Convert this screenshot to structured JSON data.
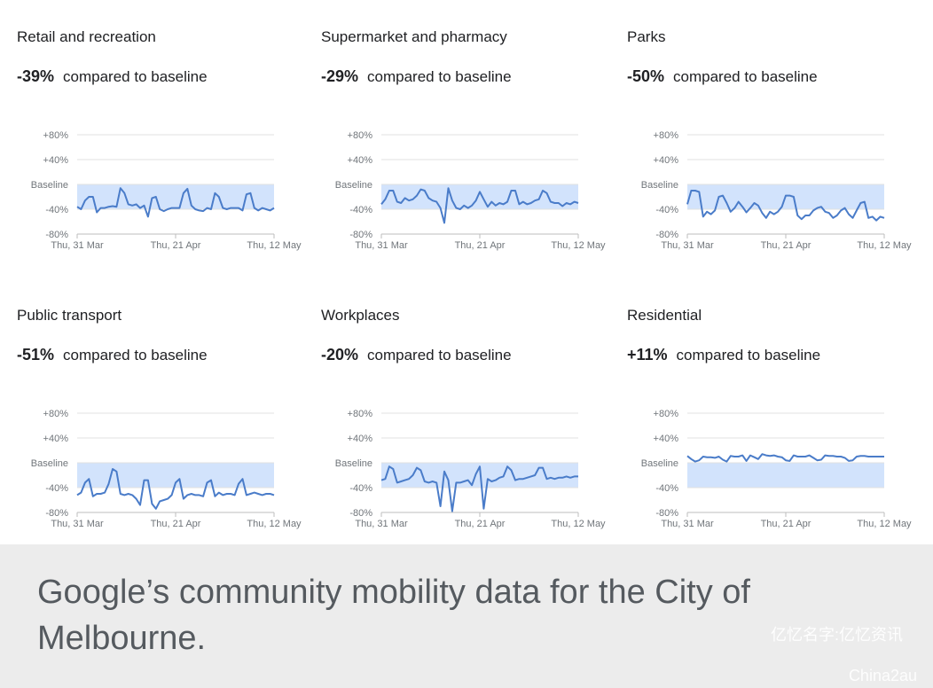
{
  "chart_data": [
    {
      "type": "line",
      "title": "Retail and recreation",
      "summary_value": "-39%",
      "summary_text": "compared to baseline",
      "yticks": [
        "+80%",
        "+40%",
        "Baseline",
        "-40%",
        "-80%"
      ],
      "ylim": [
        -80,
        80
      ],
      "xticks": [
        "Thu, 31 Mar",
        "Thu, 21 Apr",
        "Thu, 12 May"
      ],
      "values": [
        -36,
        -40,
        -26,
        -20,
        -20,
        -45,
        -38,
        -38,
        -36,
        -35,
        -36,
        -6,
        -14,
        -32,
        -34,
        -32,
        -38,
        -34,
        -52,
        -22,
        -20,
        -40,
        -43,
        -40,
        -38,
        -38,
        -38,
        -14,
        -7,
        -34,
        -40,
        -42,
        -43,
        -38,
        -40,
        -14,
        -20,
        -38,
        -40,
        -38,
        -38,
        -38,
        -42,
        -16,
        -14,
        -38,
        -42,
        -38,
        -40,
        -42,
        -38
      ]
    },
    {
      "type": "line",
      "title": "Supermarket and pharmacy",
      "summary_value": "-29%",
      "summary_text": "compared to baseline",
      "yticks": [
        "+80%",
        "+40%",
        "Baseline",
        "-40%",
        "-80%"
      ],
      "ylim": [
        -80,
        80
      ],
      "xticks": [
        "Thu, 31 Mar",
        "Thu, 21 Apr",
        "Thu, 12 May"
      ],
      "values": [
        -32,
        -24,
        -10,
        -10,
        -28,
        -30,
        -22,
        -26,
        -24,
        -18,
        -8,
        -10,
        -22,
        -26,
        -28,
        -38,
        -62,
        -6,
        -26,
        -38,
        -40,
        -34,
        -38,
        -34,
        -26,
        -12,
        -24,
        -36,
        -28,
        -34,
        -30,
        -32,
        -28,
        -10,
        -10,
        -32,
        -28,
        -32,
        -30,
        -26,
        -24,
        -10,
        -14,
        -28,
        -30,
        -30,
        -35,
        -30,
        -32,
        -28,
        -30
      ]
    },
    {
      "type": "line",
      "title": "Parks",
      "summary_value": "-50%",
      "summary_text": "compared to baseline",
      "yticks": [
        "+80%",
        "+40%",
        "Baseline",
        "-40%",
        "-80%"
      ],
      "ylim": [
        -80,
        80
      ],
      "xticks": [
        "Thu, 31 Mar",
        "Thu, 21 Apr",
        "Thu, 12 May"
      ],
      "values": [
        -32,
        -10,
        -10,
        -12,
        -52,
        -44,
        -48,
        -42,
        -20,
        -18,
        -30,
        -44,
        -38,
        -28,
        -36,
        -45,
        -38,
        -30,
        -34,
        -46,
        -54,
        -44,
        -48,
        -44,
        -36,
        -18,
        -18,
        -20,
        -50,
        -56,
        -50,
        -50,
        -42,
        -38,
        -36,
        -44,
        -46,
        -54,
        -50,
        -42,
        -38,
        -48,
        -54,
        -42,
        -30,
        -28,
        -54,
        -52,
        -58,
        -52,
        -54
      ]
    },
    {
      "type": "line",
      "title": "Public transport",
      "summary_value": "-51%",
      "summary_text": "compared to baseline",
      "yticks": [
        "+80%",
        "+40%",
        "Baseline",
        "-40%",
        "-80%"
      ],
      "ylim": [
        -80,
        80
      ],
      "xticks": [
        "Thu, 31 Mar",
        "Thu, 21 Apr",
        "Thu, 12 May"
      ],
      "values": [
        -52,
        -48,
        -32,
        -26,
        -54,
        -50,
        -50,
        -48,
        -34,
        -10,
        -14,
        -50,
        -52,
        -50,
        -52,
        -58,
        -68,
        -28,
        -28,
        -66,
        -74,
        -62,
        -60,
        -58,
        -52,
        -32,
        -26,
        -58,
        -52,
        -50,
        -52,
        -52,
        -54,
        -32,
        -28,
        -54,
        -48,
        -52,
        -50,
        -50,
        -52,
        -34,
        -26,
        -52,
        -50,
        -48,
        -50,
        -52,
        -50,
        -50,
        -52
      ]
    },
    {
      "type": "line",
      "title": "Workplaces",
      "summary_value": "-20%",
      "summary_text": "compared to baseline",
      "yticks": [
        "+80%",
        "+40%",
        "Baseline",
        "-40%",
        "-80%"
      ],
      "ylim": [
        -80,
        80
      ],
      "xticks": [
        "Thu, 31 Mar",
        "Thu, 21 Apr",
        "Thu, 12 May"
      ],
      "values": [
        -28,
        -26,
        -6,
        -10,
        -32,
        -30,
        -28,
        -26,
        -20,
        -8,
        -12,
        -30,
        -32,
        -30,
        -32,
        -70,
        -14,
        -28,
        -78,
        -32,
        -32,
        -30,
        -28,
        -36,
        -18,
        -6,
        -74,
        -26,
        -30,
        -28,
        -24,
        -22,
        -6,
        -12,
        -28,
        -26,
        -26,
        -24,
        -22,
        -20,
        -8,
        -8,
        -26,
        -24,
        -26,
        -24,
        -24,
        -22,
        -24,
        -22,
        -22
      ]
    },
    {
      "type": "line",
      "title": "Residential",
      "summary_value": "+11%",
      "summary_text": "compared to baseline",
      "yticks": [
        "+80%",
        "+40%",
        "Baseline",
        "-40%",
        "-80%"
      ],
      "ylim": [
        -80,
        80
      ],
      "xticks": [
        "Thu, 31 Mar",
        "Thu, 21 Apr",
        "Thu, 12 May"
      ],
      "values": [
        11,
        6,
        2,
        4,
        10,
        9,
        9,
        8,
        10,
        5,
        2,
        11,
        10,
        10,
        12,
        3,
        12,
        9,
        6,
        14,
        12,
        11,
        12,
        10,
        9,
        4,
        3,
        12,
        10,
        10,
        10,
        12,
        8,
        4,
        5,
        12,
        11,
        11,
        10,
        10,
        8,
        3,
        4,
        10,
        11,
        11,
        10,
        10,
        10,
        10,
        10
      ]
    }
  ],
  "caption": "Google’s community mobility data for the City of Melbourne.",
  "watermarks": [
    "亿忆名字:亿忆资讯",
    "China2au"
  ]
}
